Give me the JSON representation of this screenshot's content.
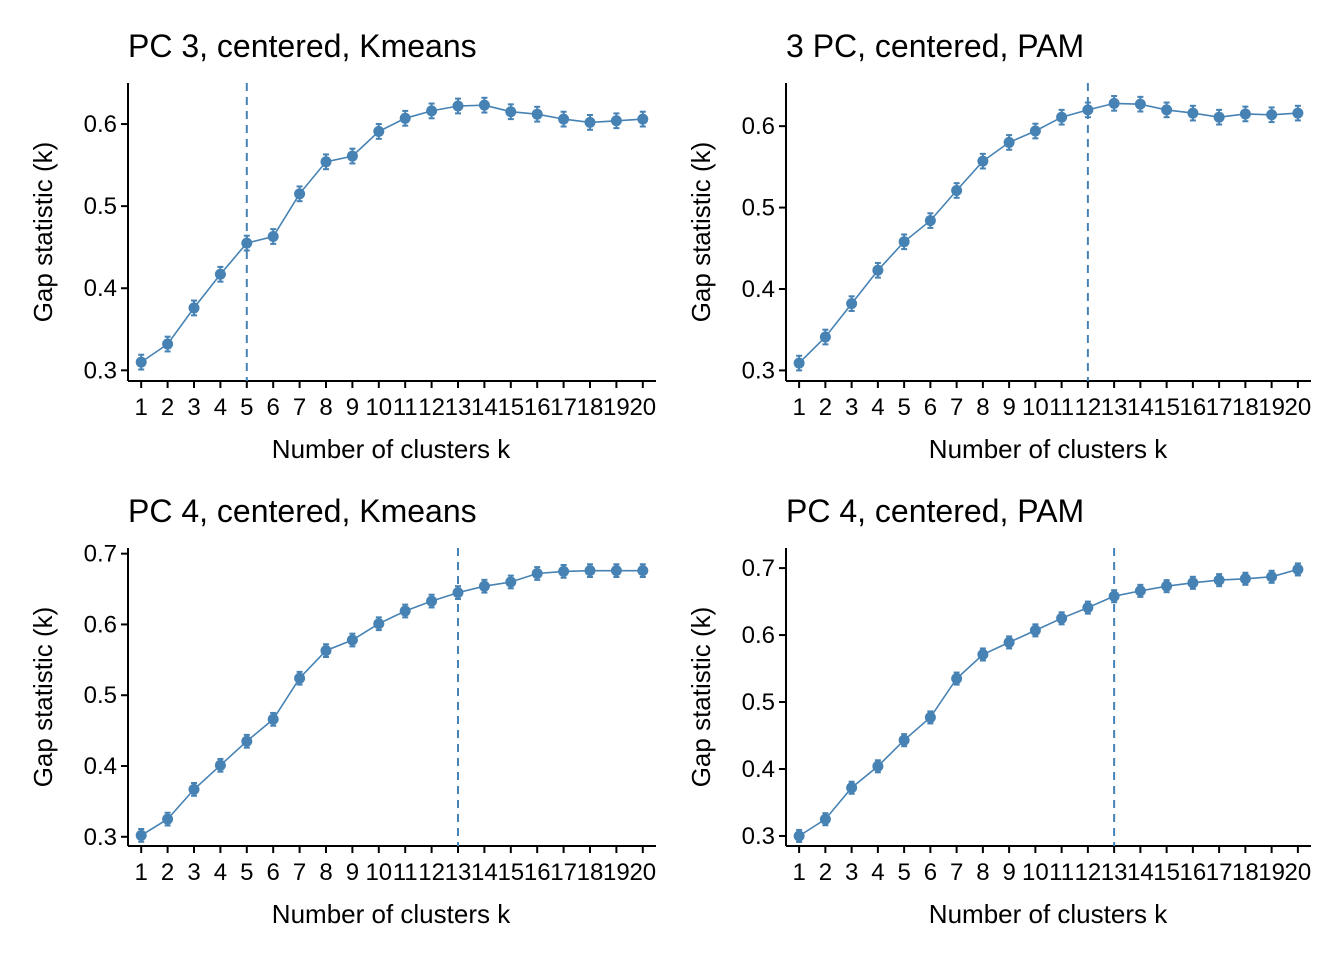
{
  "figure": {
    "accent_color": "#4682B4"
  },
  "chart_data": [
    {
      "type": "line",
      "title": "PC 3, centered, Kmeans",
      "xlabel": "Number of clusters k",
      "ylabel": "Gap statistic (k)",
      "x": [
        1,
        2,
        3,
        4,
        5,
        6,
        7,
        8,
        9,
        10,
        11,
        12,
        13,
        14,
        15,
        16,
        17,
        18,
        19,
        20
      ],
      "values": [
        0.31,
        0.332,
        0.376,
        0.417,
        0.455,
        0.463,
        0.515,
        0.554,
        0.561,
        0.591,
        0.607,
        0.616,
        0.622,
        0.623,
        0.615,
        0.612,
        0.606,
        0.602,
        0.604,
        0.606
      ],
      "errors": [
        0.009,
        0.009,
        0.009,
        0.009,
        0.009,
        0.009,
        0.009,
        0.009,
        0.009,
        0.009,
        0.009,
        0.009,
        0.009,
        0.009,
        0.009,
        0.009,
        0.009,
        0.009,
        0.009,
        0.009
      ],
      "optimal_k": 5,
      "ylim": [
        0.287,
        0.65
      ],
      "yticks": [
        0.3,
        0.4,
        0.5,
        0.6
      ],
      "ytick_labels": [
        "0.3",
        "0.4",
        "0.5",
        "0.6"
      ],
      "xtick_labels": [
        "1",
        "2",
        "3",
        "4",
        "5",
        "6",
        "7",
        "8",
        "9",
        "10",
        "11",
        "12",
        "13",
        "14",
        "15",
        "16",
        "17",
        "18",
        "19",
        "20"
      ],
      "grid": false,
      "color": "#4682B4"
    },
    {
      "type": "line",
      "title": "3 PC, centered, PAM",
      "xlabel": "Number of clusters k",
      "ylabel": "Gap statistic (k)",
      "x": [
        1,
        2,
        3,
        4,
        5,
        6,
        7,
        8,
        9,
        10,
        11,
        12,
        13,
        14,
        15,
        16,
        17,
        18,
        19,
        20
      ],
      "values": [
        0.309,
        0.341,
        0.382,
        0.423,
        0.458,
        0.484,
        0.521,
        0.557,
        0.58,
        0.594,
        0.611,
        0.62,
        0.628,
        0.627,
        0.62,
        0.616,
        0.611,
        0.615,
        0.614,
        0.616
      ],
      "errors": [
        0.009,
        0.009,
        0.009,
        0.009,
        0.009,
        0.009,
        0.009,
        0.009,
        0.009,
        0.009,
        0.009,
        0.009,
        0.009,
        0.009,
        0.009,
        0.009,
        0.009,
        0.009,
        0.009,
        0.009
      ],
      "optimal_k": 12,
      "ylim": [
        0.287,
        0.653
      ],
      "yticks": [
        0.3,
        0.4,
        0.5,
        0.6
      ],
      "ytick_labels": [
        "0.3",
        "0.4",
        "0.5",
        "0.6"
      ],
      "xtick_labels": [
        "1",
        "2",
        "3",
        "4",
        "5",
        "6",
        "7",
        "8",
        "9",
        "10",
        "11",
        "12",
        "13",
        "14",
        "15",
        "16",
        "17",
        "18",
        "19",
        "20"
      ],
      "grid": false,
      "color": "#4682B4"
    },
    {
      "type": "line",
      "title": "PC 4, centered, Kmeans",
      "xlabel": "Number of clusters k",
      "ylabel": "Gap statistic (k)",
      "x": [
        1,
        2,
        3,
        4,
        5,
        6,
        7,
        8,
        9,
        10,
        11,
        12,
        13,
        14,
        15,
        16,
        17,
        18,
        19,
        20
      ],
      "values": [
        0.302,
        0.325,
        0.367,
        0.401,
        0.435,
        0.466,
        0.524,
        0.563,
        0.578,
        0.601,
        0.619,
        0.633,
        0.645,
        0.654,
        0.66,
        0.672,
        0.675,
        0.676,
        0.676,
        0.676
      ],
      "errors": [
        0.009,
        0.009,
        0.009,
        0.009,
        0.009,
        0.009,
        0.009,
        0.009,
        0.009,
        0.009,
        0.009,
        0.009,
        0.009,
        0.009,
        0.009,
        0.009,
        0.009,
        0.009,
        0.009,
        0.009
      ],
      "optimal_k": 13,
      "ylim": [
        0.287,
        0.708
      ],
      "yticks": [
        0.3,
        0.4,
        0.5,
        0.6,
        0.7
      ],
      "ytick_labels": [
        "0.3",
        "0.4",
        "0.5",
        "0.6",
        "0.7"
      ],
      "xtick_labels": [
        "1",
        "2",
        "3",
        "4",
        "5",
        "6",
        "7",
        "8",
        "9",
        "10",
        "11",
        "12",
        "13",
        "14",
        "15",
        "16",
        "17",
        "18",
        "19",
        "20"
      ],
      "grid": false,
      "color": "#4682B4"
    },
    {
      "type": "line",
      "title": "PC 4, centered, PAM",
      "xlabel": "Number of clusters k",
      "ylabel": "Gap statistic (k)",
      "x": [
        1,
        2,
        3,
        4,
        5,
        6,
        7,
        8,
        9,
        10,
        11,
        12,
        13,
        14,
        15,
        16,
        17,
        18,
        19,
        20
      ],
      "values": [
        0.3,
        0.325,
        0.372,
        0.404,
        0.443,
        0.477,
        0.535,
        0.571,
        0.589,
        0.607,
        0.625,
        0.641,
        0.658,
        0.666,
        0.673,
        0.678,
        0.682,
        0.684,
        0.687,
        0.698
      ],
      "errors": [
        0.009,
        0.009,
        0.009,
        0.009,
        0.009,
        0.009,
        0.009,
        0.009,
        0.009,
        0.009,
        0.009,
        0.009,
        0.009,
        0.009,
        0.009,
        0.009,
        0.009,
        0.009,
        0.009,
        0.009
      ],
      "optimal_k": 13,
      "ylim": [
        0.285,
        0.73
      ],
      "yticks": [
        0.3,
        0.4,
        0.5,
        0.6,
        0.7
      ],
      "ytick_labels": [
        "0.3",
        "0.4",
        "0.5",
        "0.6",
        "0.7"
      ],
      "xtick_labels": [
        "1",
        "2",
        "3",
        "4",
        "5",
        "6",
        "7",
        "8",
        "9",
        "10",
        "11",
        "12",
        "13",
        "14",
        "15",
        "16",
        "17",
        "18",
        "19",
        "20"
      ],
      "grid": false,
      "color": "#4682B4"
    }
  ]
}
